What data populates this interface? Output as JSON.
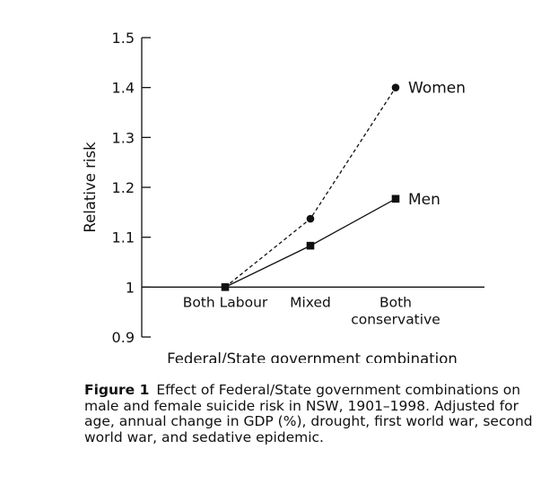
{
  "chart_data": {
    "type": "line",
    "categories": [
      "Both Labour",
      "Mixed",
      "Both\nconservative"
    ],
    "series": [
      {
        "name": "Women",
        "values": [
          1.0,
          1.137,
          1.4
        ],
        "style": "dashed",
        "marker": "circle"
      },
      {
        "name": "Men",
        "values": [
          1.0,
          1.083,
          1.177
        ],
        "style": "solid",
        "marker": "square"
      }
    ],
    "ylabel": "Relative risk",
    "xlabel": "Federal/State government combination",
    "ylim": [
      0.9,
      1.5
    ],
    "yticks": [
      0.9,
      1,
      1.1,
      1.2,
      1.3,
      1.4,
      1.5
    ],
    "ytick_labels": [
      "0.9",
      "1",
      "1.1",
      "1.2",
      "1.3",
      "1.4",
      "1.5"
    ],
    "baseline": 1,
    "grid": false,
    "legend": "inline-right-of-line-ends"
  },
  "caption": {
    "label": "Figure 1",
    "text": "Effect of Federal/State government combinations on male and female suicide risk in NSW, 1901–1998. Adjusted for age, annual change in GDP (%), drought, first world war, second world war, and sedative epidemic."
  }
}
